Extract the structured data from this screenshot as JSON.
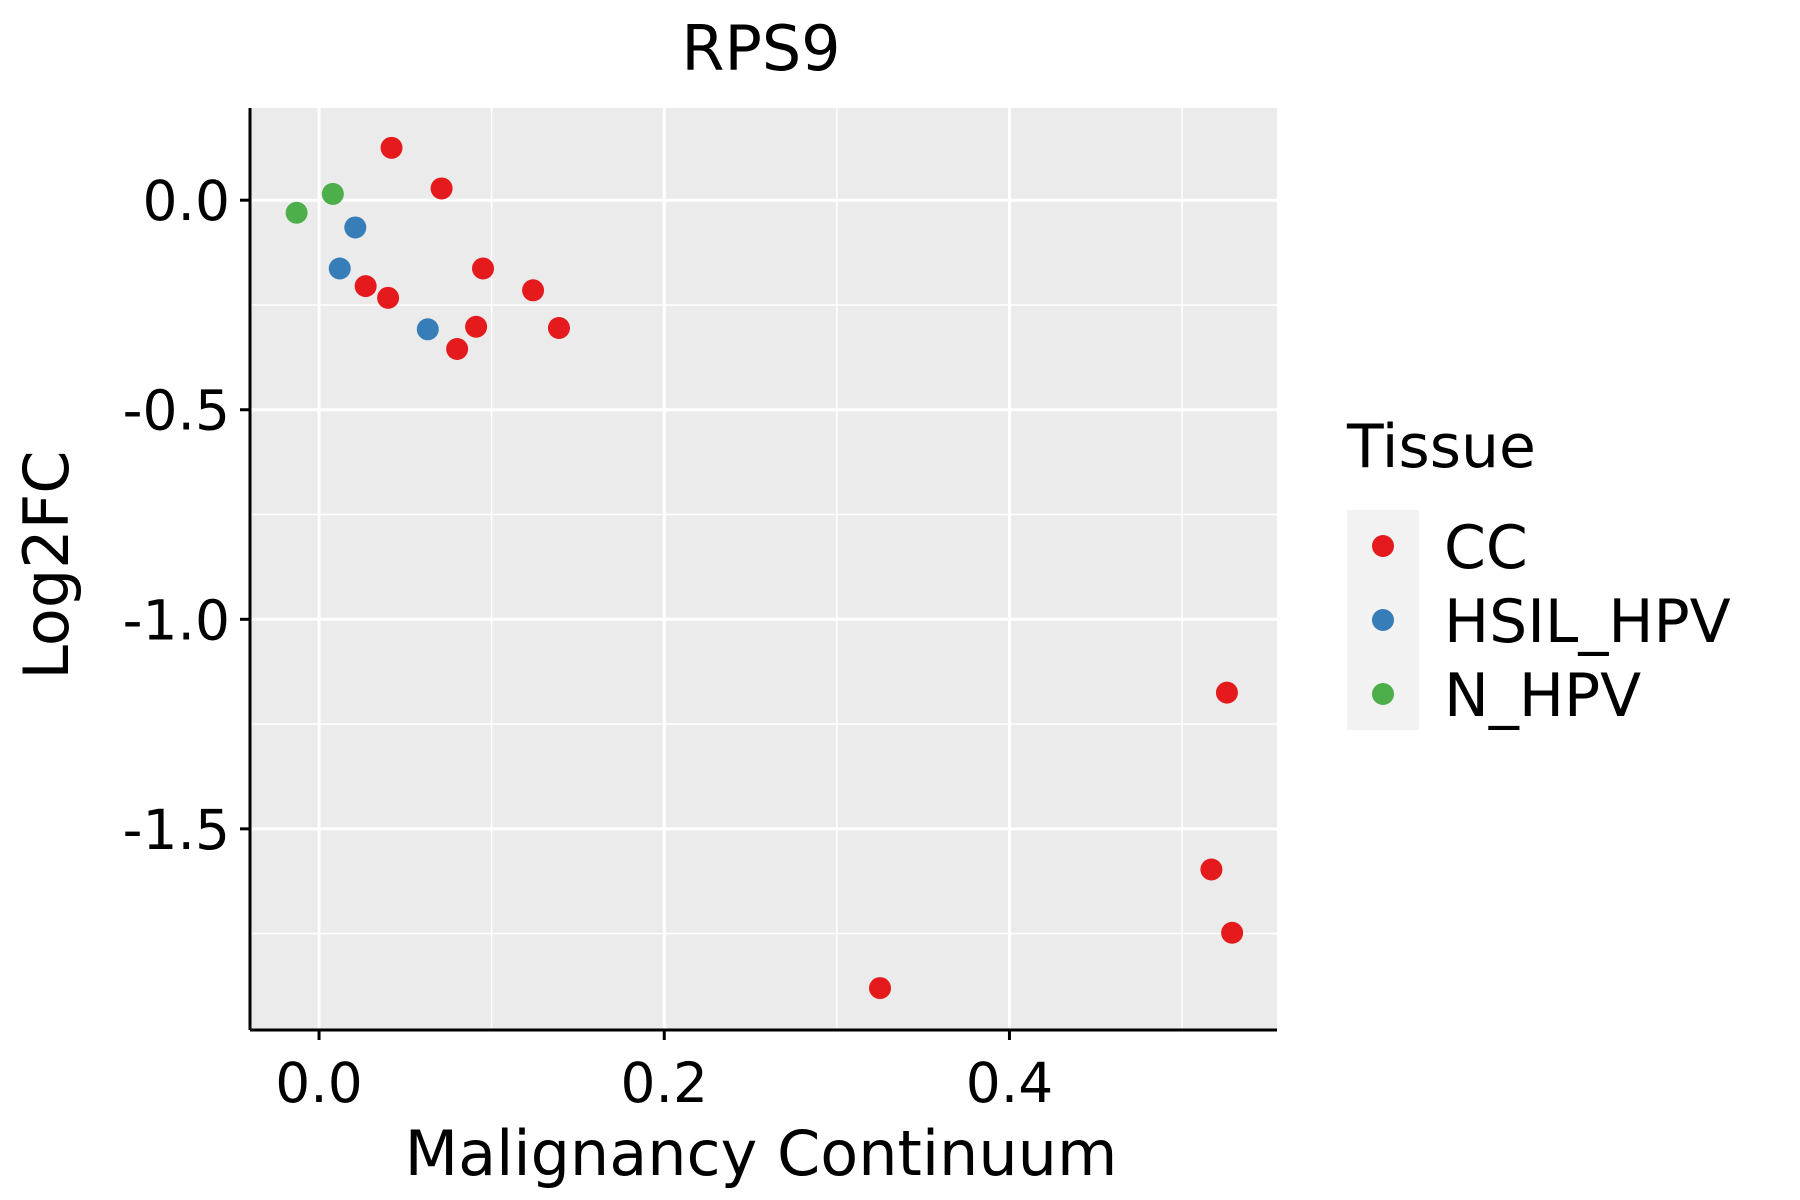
{
  "chart_data": {
    "type": "scatter",
    "title": "RPS9",
    "xlabel": "Malignancy Continuum",
    "ylabel": "Log2FC",
    "xlim": [
      -0.04,
      0.555
    ],
    "ylim": [
      -1.98,
      0.22
    ],
    "x_ticks": [
      {
        "value": 0.0,
        "label": "0.0"
      },
      {
        "value": 0.2,
        "label": "0.2"
      },
      {
        "value": 0.4,
        "label": "0.4"
      }
    ],
    "y_ticks": [
      {
        "value": 0.0,
        "label": "0.0"
      },
      {
        "value": -0.5,
        "label": "-0.5"
      },
      {
        "value": -1.0,
        "label": "-1.0"
      },
      {
        "value": -1.5,
        "label": "-1.5"
      }
    ],
    "grid": true,
    "legend": {
      "title": "Tissue",
      "position": "right",
      "entries": [
        {
          "name": "CC",
          "color": "#E41A1C"
        },
        {
          "name": "HSIL_HPV",
          "color": "#377EB8"
        },
        {
          "name": "N_HPV",
          "color": "#4DAF4A"
        }
      ]
    },
    "series": [
      {
        "name": "CC",
        "color": "#E41A1C",
        "points": [
          {
            "x": 0.042,
            "y": 0.125
          },
          {
            "x": 0.071,
            "y": 0.028
          },
          {
            "x": 0.095,
            "y": -0.163
          },
          {
            "x": 0.124,
            "y": -0.215
          },
          {
            "x": 0.027,
            "y": -0.205
          },
          {
            "x": 0.04,
            "y": -0.233
          },
          {
            "x": 0.091,
            "y": -0.302
          },
          {
            "x": 0.139,
            "y": -0.305
          },
          {
            "x": 0.08,
            "y": -0.355
          },
          {
            "x": 0.325,
            "y": -1.88
          },
          {
            "x": 0.526,
            "y": -1.175
          },
          {
            "x": 0.517,
            "y": -1.597
          },
          {
            "x": 0.529,
            "y": -1.748
          }
        ]
      },
      {
        "name": "HSIL_HPV",
        "color": "#377EB8",
        "points": [
          {
            "x": 0.021,
            "y": -0.065
          },
          {
            "x": 0.012,
            "y": -0.163
          },
          {
            "x": 0.063,
            "y": -0.308
          }
        ]
      },
      {
        "name": "N_HPV",
        "color": "#4DAF4A",
        "points": [
          {
            "x": -0.013,
            "y": -0.03
          },
          {
            "x": 0.008,
            "y": 0.015
          }
        ]
      }
    ]
  }
}
